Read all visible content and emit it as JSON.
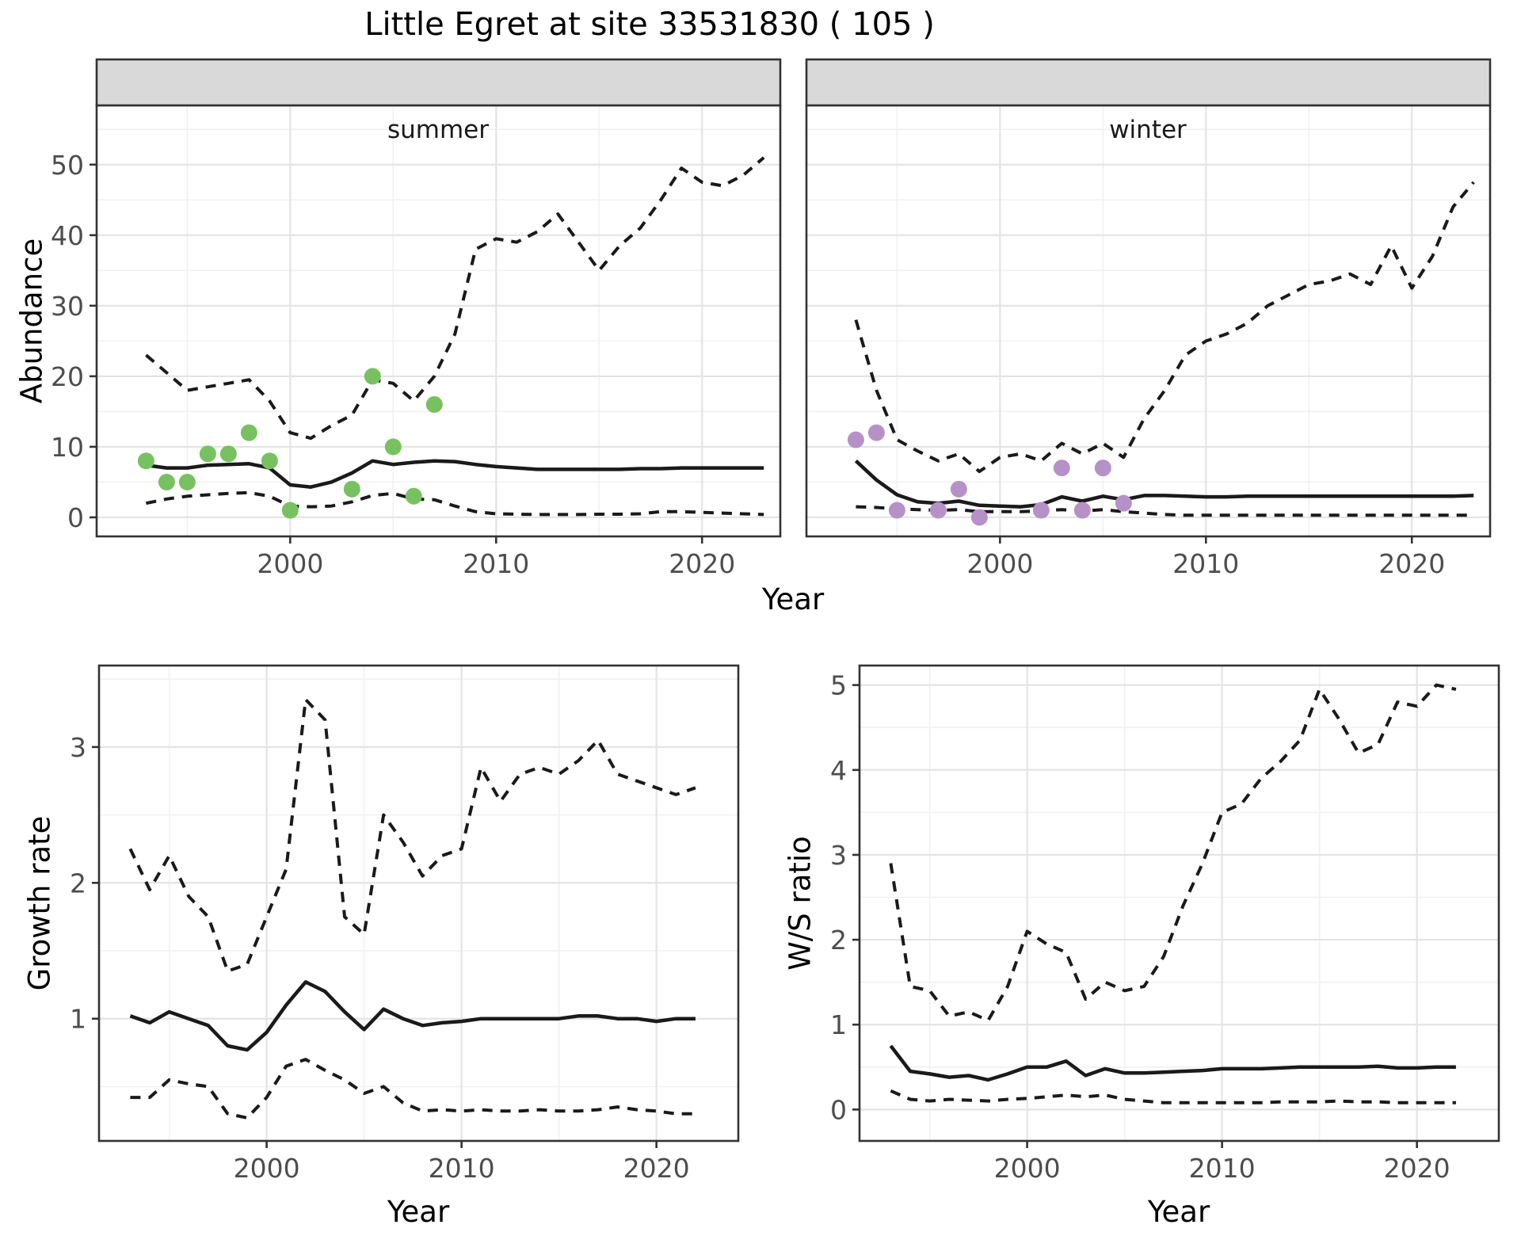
{
  "title": "Little Egret at site 33531830 ( 105 )",
  "colors": {
    "summer_points": "#77C160",
    "winter_points": "#B691C8",
    "line": "#1a1a1a",
    "strip_bg": "#d9d9d9",
    "panel_border": "#333333",
    "grid_major": "#e4e4e4",
    "grid_minor": "#f1f1f1",
    "tick_text": "#4d4d4d"
  },
  "chart_data": [
    {
      "name": "abundance",
      "type": "line",
      "ylabel": "Abundance",
      "xlabel": "Year",
      "legend": "none",
      "grid": "on",
      "x": {
        "lim": [
          1990.6,
          2023.8
        ],
        "ticks": [
          2000,
          2010,
          2020
        ],
        "minor": [
          1995,
          2005,
          2015
        ]
      },
      "y": {
        "lim": [
          -2.7,
          58.4
        ],
        "ticks": [
          0,
          10,
          20,
          30,
          40,
          50
        ],
        "minor": [
          5,
          15,
          25,
          35,
          45,
          55
        ]
      },
      "years": [
        1993,
        1994,
        1995,
        1996,
        1997,
        1998,
        1999,
        2000,
        2001,
        2002,
        2003,
        2004,
        2005,
        2006,
        2007,
        2008,
        2009,
        2010,
        2011,
        2012,
        2013,
        2014,
        2015,
        2016,
        2017,
        2018,
        2019,
        2020,
        2021,
        2022,
        2023
      ],
      "facets": [
        {
          "label": "summer",
          "point_color": "#77C160",
          "observations": [
            [
              1993,
              8
            ],
            [
              1994,
              5
            ],
            [
              1995,
              5
            ],
            [
              1996,
              9
            ],
            [
              1997,
              9
            ],
            [
              1998,
              12
            ],
            [
              1999,
              8
            ],
            [
              2000,
              1
            ],
            [
              2003,
              4
            ],
            [
              2004,
              20
            ],
            [
              2005,
              10
            ],
            [
              2006,
              3
            ],
            [
              2007,
              16
            ]
          ],
          "median": [
            7.4,
            7.0,
            7.0,
            7.4,
            7.5,
            7.6,
            7.0,
            4.6,
            4.3,
            5.0,
            6.3,
            8.0,
            7.5,
            7.8,
            8.0,
            7.9,
            7.5,
            7.2,
            7.0,
            6.8,
            6.8,
            6.8,
            6.8,
            6.8,
            6.9,
            6.9,
            7.0,
            7.0,
            7.0,
            7.0,
            7.0
          ],
          "upper_ci": [
            23,
            20.5,
            18,
            18.5,
            19,
            19.5,
            16.5,
            12,
            11.2,
            13,
            14.5,
            19.5,
            19,
            16.5,
            20,
            26,
            38,
            39.5,
            39,
            40.5,
            43,
            39,
            35,
            38.5,
            41,
            45,
            49.5,
            47.5,
            47,
            48.5,
            51
          ],
          "lower_ci": [
            2.0,
            2.6,
            3.0,
            3.2,
            3.4,
            3.5,
            3.0,
            1.6,
            1.5,
            1.6,
            2.2,
            3.1,
            3.4,
            2.6,
            2.5,
            1.6,
            0.8,
            0.5,
            0.45,
            0.4,
            0.4,
            0.4,
            0.45,
            0.45,
            0.5,
            0.8,
            0.8,
            0.7,
            0.6,
            0.5,
            0.4
          ]
        },
        {
          "label": "winter",
          "point_color": "#B691C8",
          "observations": [
            [
              1993,
              11
            ],
            [
              1994,
              12
            ],
            [
              1995,
              1
            ],
            [
              1997,
              1
            ],
            [
              1998,
              4
            ],
            [
              1999,
              0
            ],
            [
              2002,
              1
            ],
            [
              2003,
              7
            ],
            [
              2004,
              1
            ],
            [
              2005,
              7
            ],
            [
              2006,
              2
            ]
          ],
          "median": [
            8.0,
            5.3,
            3.2,
            2.2,
            2.0,
            2.3,
            1.7,
            1.6,
            1.5,
            1.8,
            2.9,
            2.3,
            3.0,
            2.5,
            3.1,
            3.1,
            3.0,
            2.9,
            2.9,
            3.0,
            3.0,
            3.0,
            3.0,
            3.0,
            3.0,
            3.0,
            3.0,
            3.0,
            3.0,
            3.0,
            3.1
          ],
          "upper_ci": [
            28,
            18,
            11,
            9.4,
            8.0,
            9.0,
            6.5,
            8.5,
            9.0,
            8.0,
            10.5,
            9.0,
            10.5,
            8.5,
            14,
            18,
            23,
            25,
            26,
            27.5,
            30,
            31.5,
            33,
            33.5,
            34.5,
            33,
            38.5,
            32.5,
            37,
            44,
            47.5
          ],
          "lower_ci": [
            1.5,
            1.4,
            1.2,
            1.1,
            1.0,
            1.1,
            0.8,
            0.8,
            0.8,
            0.9,
            1.1,
            0.9,
            1.1,
            0.8,
            0.6,
            0.4,
            0.3,
            0.3,
            0.3,
            0.3,
            0.3,
            0.3,
            0.3,
            0.3,
            0.3,
            0.3,
            0.3,
            0.3,
            0.3,
            0.3,
            0.3
          ]
        }
      ]
    },
    {
      "name": "growth_rate",
      "type": "line",
      "ylabel": "Growth rate",
      "xlabel": "Year",
      "legend": "none",
      "grid": "on",
      "x": {
        "lim": [
          1991.4,
          2024.2
        ],
        "ticks": [
          2000,
          2010,
          2020
        ],
        "minor": [
          1995,
          2005,
          2015
        ]
      },
      "y": {
        "lim": [
          0.1,
          3.6
        ],
        "ticks": [
          1,
          2,
          3
        ],
        "minor": [
          0.5,
          1.5,
          2.5,
          3.5
        ]
      },
      "years": [
        1993,
        1994,
        1995,
        1996,
        1997,
        1998,
        1999,
        2000,
        2001,
        2002,
        2003,
        2004,
        2005,
        2006,
        2007,
        2008,
        2009,
        2010,
        2011,
        2012,
        2013,
        2014,
        2015,
        2016,
        2017,
        2018,
        2019,
        2020,
        2021,
        2022
      ],
      "median": [
        1.02,
        0.97,
        1.05,
        1.0,
        0.95,
        0.8,
        0.77,
        0.9,
        1.1,
        1.27,
        1.2,
        1.05,
        0.92,
        1.07,
        1.0,
        0.95,
        0.97,
        0.98,
        1.0,
        1.0,
        1.0,
        1.0,
        1.0,
        1.02,
        1.02,
        1.0,
        1.0,
        0.98,
        1.0,
        1.0
      ],
      "upper_ci": [
        2.25,
        1.95,
        2.2,
        1.9,
        1.75,
        1.35,
        1.4,
        1.75,
        2.1,
        3.35,
        3.2,
        1.75,
        1.62,
        2.5,
        2.3,
        2.05,
        2.2,
        2.25,
        2.85,
        2.6,
        2.8,
        2.85,
        2.8,
        2.9,
        3.05,
        2.8,
        2.75,
        2.7,
        2.65,
        2.7
      ],
      "lower_ci": [
        0.42,
        0.42,
        0.55,
        0.52,
        0.5,
        0.3,
        0.27,
        0.42,
        0.65,
        0.7,
        0.62,
        0.55,
        0.45,
        0.5,
        0.38,
        0.32,
        0.33,
        0.32,
        0.33,
        0.32,
        0.32,
        0.33,
        0.32,
        0.32,
        0.33,
        0.35,
        0.33,
        0.32,
        0.3,
        0.3
      ]
    },
    {
      "name": "ws_ratio",
      "type": "line",
      "ylabel": "W/S ratio",
      "xlabel": "Year",
      "legend": "none",
      "grid": "on",
      "x": {
        "lim": [
          1991.4,
          2024.2
        ],
        "ticks": [
          2000,
          2010,
          2020
        ],
        "minor": [
          1995,
          2005,
          2015
        ]
      },
      "y": {
        "lim": [
          -0.37,
          5.23
        ],
        "ticks": [
          0,
          1,
          2,
          3,
          4,
          5
        ],
        "minor": [
          0.5,
          1.5,
          2.5,
          3.5,
          4.5
        ]
      },
      "years": [
        1993,
        1994,
        1995,
        1996,
        1997,
        1998,
        1999,
        2000,
        2001,
        2002,
        2003,
        2004,
        2005,
        2006,
        2007,
        2008,
        2009,
        2010,
        2011,
        2012,
        2013,
        2014,
        2015,
        2016,
        2017,
        2018,
        2019,
        2020,
        2021,
        2022
      ],
      "median": [
        0.75,
        0.45,
        0.42,
        0.38,
        0.4,
        0.35,
        0.42,
        0.5,
        0.5,
        0.57,
        0.4,
        0.48,
        0.43,
        0.43,
        0.44,
        0.45,
        0.46,
        0.48,
        0.48,
        0.48,
        0.49,
        0.5,
        0.5,
        0.5,
        0.5,
        0.51,
        0.49,
        0.49,
        0.5,
        0.5
      ],
      "upper_ci": [
        2.9,
        1.45,
        1.4,
        1.1,
        1.15,
        1.05,
        1.45,
        2.1,
        1.95,
        1.85,
        1.3,
        1.5,
        1.4,
        1.45,
        1.8,
        2.4,
        2.9,
        3.5,
        3.6,
        3.9,
        4.1,
        4.35,
        4.95,
        4.6,
        4.2,
        4.3,
        4.8,
        4.75,
        5.0,
        4.95
      ],
      "lower_ci": [
        0.22,
        0.12,
        0.1,
        0.12,
        0.11,
        0.1,
        0.12,
        0.13,
        0.15,
        0.17,
        0.15,
        0.17,
        0.12,
        0.1,
        0.08,
        0.08,
        0.08,
        0.08,
        0.08,
        0.08,
        0.09,
        0.09,
        0.09,
        0.1,
        0.09,
        0.09,
        0.08,
        0.08,
        0.08,
        0.08
      ]
    }
  ]
}
